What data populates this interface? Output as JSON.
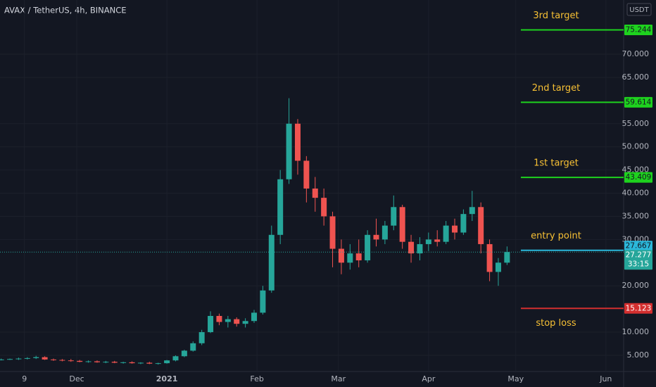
{
  "chart_data": {
    "type": "candlestick",
    "title": "AVAX / TetherUS, 4h, BINANCE",
    "currency": "USDT",
    "x": [
      -57,
      -54,
      -51,
      -48,
      -45,
      -42,
      -39,
      -36,
      -33,
      -30,
      -27,
      -24,
      -21,
      -18,
      -15,
      -12,
      -9,
      -6,
      -3,
      0,
      3,
      6,
      9,
      12,
      15,
      18,
      21,
      24,
      27,
      30,
      33,
      36,
      39,
      42,
      45,
      48,
      51,
      54,
      57,
      60,
      63,
      66,
      69,
      72,
      75,
      78,
      81,
      84,
      87,
      90,
      93,
      96,
      99,
      102,
      105,
      108,
      111,
      114,
      117
    ],
    "open": [
      4.0,
      4.1,
      4.2,
      4.3,
      4.4,
      4.6,
      4.1,
      4.0,
      3.9,
      3.8,
      3.6,
      3.7,
      3.5,
      3.6,
      3.4,
      3.5,
      3.3,
      3.4,
      3.2,
      3.3,
      3.9,
      4.8,
      6.0,
      7.6,
      10.0,
      13.5,
      12.2,
      12.8,
      11.8,
      12.4,
      14.2,
      19.0,
      31.0,
      43.0,
      55.0,
      47.0,
      41.0,
      39.0,
      35.0,
      28.0,
      25.0,
      27.0,
      25.5,
      31.0,
      30.0,
      33.0,
      37.0,
      29.5,
      27.0,
      29.0,
      30.0,
      29.5,
      33.0,
      31.5,
      35.5,
      37.0,
      29.0,
      23.0,
      25.0
    ],
    "high": [
      4.3,
      4.3,
      4.5,
      4.6,
      4.9,
      4.8,
      4.3,
      4.2,
      4.2,
      4.0,
      3.9,
      3.9,
      3.8,
      3.8,
      3.6,
      3.7,
      3.5,
      3.6,
      3.4,
      4.0,
      5.0,
      6.2,
      8.0,
      10.5,
      14.5,
      14.0,
      13.5,
      13.2,
      13.0,
      14.8,
      20.0,
      33.0,
      45.0,
      60.5,
      56.0,
      48.0,
      43.5,
      41.0,
      36.0,
      30.0,
      29.0,
      30.0,
      32.0,
      34.5,
      34.0,
      39.5,
      37.5,
      31.0,
      30.5,
      31.5,
      32.0,
      34.0,
      34.5,
      36.5,
      40.5,
      38.0,
      30.0,
      26.0,
      28.5
    ],
    "low": [
      3.9,
      4.0,
      4.0,
      4.1,
      4.2,
      4.0,
      3.8,
      3.7,
      3.6,
      3.5,
      3.4,
      3.4,
      3.3,
      3.3,
      3.2,
      3.2,
      3.1,
      3.1,
      3.0,
      3.2,
      3.7,
      4.6,
      5.8,
      7.2,
      9.8,
      11.5,
      11.0,
      11.2,
      11.0,
      12.0,
      13.8,
      18.5,
      29.0,
      42.0,
      44.0,
      38.0,
      36.0,
      33.0,
      24.0,
      22.5,
      23.5,
      24.0,
      25.0,
      28.5,
      29.0,
      32.0,
      28.0,
      25.0,
      25.5,
      27.5,
      28.5,
      29.0,
      30.0,
      31.0,
      34.0,
      27.0,
      21.0,
      20.0,
      24.5
    ],
    "close": [
      4.1,
      4.2,
      4.3,
      4.4,
      4.6,
      4.1,
      4.0,
      3.9,
      3.8,
      3.6,
      3.7,
      3.5,
      3.6,
      3.4,
      3.5,
      3.3,
      3.4,
      3.2,
      3.3,
      3.9,
      4.8,
      6.0,
      7.6,
      10.0,
      13.5,
      12.2,
      12.8,
      11.8,
      12.4,
      14.2,
      19.0,
      31.0,
      43.0,
      55.0,
      47.0,
      41.0,
      39.0,
      35.0,
      28.0,
      25.0,
      27.0,
      25.5,
      31.0,
      30.0,
      33.0,
      37.0,
      29.5,
      27.0,
      29.0,
      30.0,
      29.5,
      33.0,
      31.5,
      35.5,
      37.0,
      29.0,
      23.0,
      25.0,
      27.3
    ],
    "up_color": "#26a69a",
    "down_color": "#ef5350",
    "xlim": [
      -57.4,
      157.1
    ],
    "xticks": [
      {
        "value": -49,
        "label": "9"
      },
      {
        "value": -31,
        "label": "Dec"
      },
      {
        "value": 0,
        "label": "2021"
      },
      {
        "value": 31,
        "label": "Feb"
      },
      {
        "value": 59,
        "label": "Mar"
      },
      {
        "value": 90,
        "label": "Apr"
      },
      {
        "value": 120,
        "label": "May"
      },
      {
        "value": 151,
        "label": "Jun"
      }
    ],
    "ylim": [
      1.5,
      81.7
    ],
    "yticks": [
      {
        "value": 5,
        "label": "5.000"
      },
      {
        "value": 10,
        "label": "10.000"
      },
      {
        "value": 20,
        "label": "20.000"
      },
      {
        "value": 30,
        "label": "30.000"
      },
      {
        "value": 35,
        "label": "35.000"
      },
      {
        "value": 40,
        "label": "40.000"
      },
      {
        "value": 45,
        "label": "45.000"
      },
      {
        "value": 50,
        "label": "50.000"
      },
      {
        "value": 55,
        "label": "55.000"
      },
      {
        "value": 65,
        "label": "65.000"
      },
      {
        "value": 70,
        "label": "70.000"
      }
    ],
    "grid": true,
    "levels": [
      {
        "name": "3rd target",
        "value": 75.244,
        "color": "#1ed21e",
        "label_pos": "above"
      },
      {
        "name": "2nd target",
        "value": 59.614,
        "color": "#1ed21e",
        "label_pos": "above"
      },
      {
        "name": "1st target",
        "value": 43.409,
        "color": "#1ed21e",
        "label_pos": "above"
      },
      {
        "name": "entry point",
        "value": 27.667,
        "color": "#2bb7da",
        "label_pos": "above"
      },
      {
        "name": "stop loss",
        "value": 15.123,
        "color": "#d32f2f",
        "label_pos": "below"
      }
    ],
    "current_price": {
      "value": 27.277,
      "countdown": "33:15",
      "color": "#26a69a"
    }
  }
}
